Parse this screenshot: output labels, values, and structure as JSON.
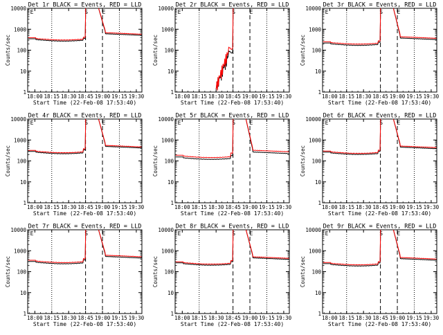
{
  "chart_data": [
    {
      "type": "line",
      "title": "Det 1r BLACK = Events, RED = LLD",
      "xlabel": "Start Time (22-Feb-08 17:53:40)",
      "ylabel": "Counts/sec",
      "ylim": [
        1,
        10000
      ],
      "ylog": true,
      "xticks": [
        "18:00",
        "18:15",
        "18:30",
        "18:45",
        "19:00",
        "19:15",
        "19:30"
      ],
      "yticks": [
        "1",
        "10",
        "100",
        "1000",
        "10000"
      ],
      "markers": [
        "E",
        "S",
        "E"
      ],
      "grid": false,
      "series": [
        {
          "color": "#000000",
          "base": 320,
          "pre_bump": 1.15
        },
        {
          "color": "#ff0000",
          "base": 360,
          "pre_bump": 1.15
        }
      ]
    },
    {
      "type": "line",
      "title": "Det 2r BLACK = Events, RED = LLD",
      "xlabel": "Start Time (22-Feb-08 17:53:40)",
      "ylabel": "Counts/sec",
      "ylim": [
        1,
        10000
      ],
      "ylog": true,
      "xticks": [
        "18:00",
        "18:15",
        "18:30",
        "18:45",
        "19:00",
        "19:15",
        "19:30"
      ],
      "yticks": [
        "1",
        "10",
        "100",
        "1000",
        "10000"
      ],
      "markers": [
        "E",
        "S",
        "E"
      ],
      "grid": false,
      "series": [
        {
          "color": "#000000",
          "base": 80,
          "pre_bump": 1.0
        },
        {
          "color": "#ff0000",
          "base": 120,
          "pre_bump": 1.0
        }
      ]
    },
    {
      "type": "line",
      "title": "Det 3r BLACK = Events, RED = LLD",
      "xlabel": "Start Time (22-Feb-08 17:53:40)",
      "ylabel": "Counts/sec",
      "ylim": [
        1,
        10000
      ],
      "ylog": true,
      "xticks": [
        "18:00",
        "18:15",
        "18:30",
        "18:45",
        "19:00",
        "19:15",
        "19:30"
      ],
      "yticks": [
        "1",
        "10",
        "100",
        "1000",
        "10000"
      ],
      "markers": [
        "E",
        "S",
        "E"
      ],
      "grid": false,
      "series": [
        {
          "color": "#000000",
          "base": 200,
          "pre_bump": 1.2
        },
        {
          "color": "#ff0000",
          "base": 230,
          "pre_bump": 1.2
        }
      ]
    },
    {
      "type": "line",
      "title": "Det 4r BLACK = Events, RED = LLD",
      "xlabel": "Start Time (22-Feb-08 17:53:40)",
      "ylabel": "Counts/sec",
      "ylim": [
        1,
        10000
      ],
      "ylog": true,
      "xticks": [
        "18:00",
        "18:15",
        "18:30",
        "18:45",
        "19:00",
        "19:15",
        "19:30"
      ],
      "yticks": [
        "1",
        "10",
        "100",
        "1000",
        "10000"
      ],
      "markers": [
        "E",
        "S",
        "E"
      ],
      "grid": false,
      "series": [
        {
          "color": "#000000",
          "base": 260,
          "pre_bump": 1.3
        },
        {
          "color": "#ff0000",
          "base": 290,
          "pre_bump": 1.3
        }
      ]
    },
    {
      "type": "line",
      "title": "Det 5r BLACK = Events, RED = LLD",
      "xlabel": "Start Time (22-Feb-08 17:53:40)",
      "ylabel": "Counts/sec",
      "ylim": [
        1,
        10000
      ],
      "ylog": true,
      "xticks": [
        "18:00",
        "18:15",
        "18:30",
        "18:45",
        "19:00",
        "19:15",
        "19:30"
      ],
      "yticks": [
        "1",
        "10",
        "100",
        "1000",
        "10000"
      ],
      "markers": [
        "E",
        "S",
        "E"
      ],
      "grid": false,
      "series": [
        {
          "color": "#000000",
          "base": 140,
          "pre_bump": 1.3
        },
        {
          "color": "#ff0000",
          "base": 170,
          "pre_bump": 1.4
        }
      ]
    },
    {
      "type": "line",
      "title": "Det 6r BLACK = Events, RED = LLD",
      "xlabel": "Start Time (22-Feb-08 17:53:40)",
      "ylabel": "Counts/sec",
      "ylim": [
        1,
        10000
      ],
      "ylog": true,
      "xticks": [
        "18:00",
        "18:15",
        "18:30",
        "18:45",
        "19:00",
        "19:15",
        "19:30"
      ],
      "yticks": [
        "1",
        "10",
        "100",
        "1000",
        "10000"
      ],
      "markers": [
        "E",
        "S",
        "E"
      ],
      "grid": false,
      "series": [
        {
          "color": "#000000",
          "base": 240,
          "pre_bump": 1.2
        },
        {
          "color": "#ff0000",
          "base": 270,
          "pre_bump": 1.2
        }
      ]
    },
    {
      "type": "line",
      "title": "Det 7r BLACK = Events, RED = LLD",
      "xlabel": "Start Time (22-Feb-08 17:53:40)",
      "ylabel": "Counts/sec",
      "ylim": [
        1,
        10000
      ],
      "ylog": true,
      "xticks": [
        "18:00",
        "18:15",
        "18:30",
        "18:45",
        "19:00",
        "19:15",
        "19:30"
      ],
      "yticks": [
        "1",
        "10",
        "100",
        "1000",
        "10000"
      ],
      "markers": [
        "E",
        "S",
        "E"
      ],
      "grid": false,
      "series": [
        {
          "color": "#000000",
          "base": 280,
          "pre_bump": 1.3
        },
        {
          "color": "#ff0000",
          "base": 320,
          "pre_bump": 1.3
        }
      ]
    },
    {
      "type": "line",
      "title": "Det 8r BLACK = Events, RED = LLD",
      "xlabel": "Start Time (22-Feb-08 17:53:40)",
      "ylabel": "Counts/sec",
      "ylim": [
        1,
        10000
      ],
      "ylog": true,
      "xticks": [
        "18:00",
        "18:15",
        "18:30",
        "18:45",
        "19:00",
        "19:15",
        "19:30"
      ],
      "yticks": [
        "1",
        "10",
        "100",
        "1000",
        "10000"
      ],
      "markers": [
        "E",
        "S",
        "E"
      ],
      "grid": false,
      "series": [
        {
          "color": "#000000",
          "base": 240,
          "pre_bump": 1.25
        },
        {
          "color": "#ff0000",
          "base": 270,
          "pre_bump": 1.25
        }
      ]
    },
    {
      "type": "line",
      "title": "Det 9r BLACK = Events, RED = LLD",
      "xlabel": "Start Time (22-Feb-08 17:53:40)",
      "ylabel": "Counts/sec",
      "ylim": [
        1,
        10000
      ],
      "ylog": true,
      "xticks": [
        "18:00",
        "18:15",
        "18:30",
        "18:45",
        "19:00",
        "19:15",
        "19:30"
      ],
      "yticks": [
        "1",
        "10",
        "100",
        "1000",
        "10000"
      ],
      "markers": [
        "E",
        "S",
        "E"
      ],
      "grid": false,
      "series": [
        {
          "color": "#000000",
          "base": 220,
          "pre_bump": 1.2
        },
        {
          "color": "#ff0000",
          "base": 250,
          "pre_bump": 1.2
        }
      ]
    }
  ]
}
